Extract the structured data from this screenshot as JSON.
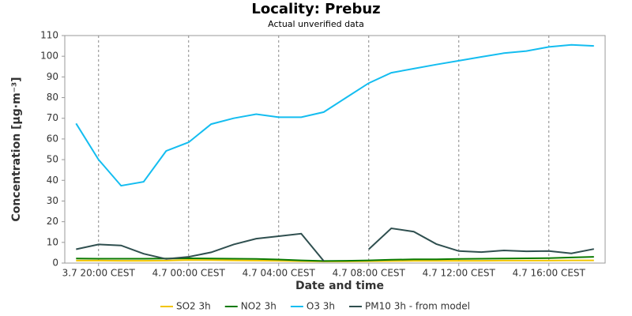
{
  "chart_data": {
    "type": "line",
    "title": "Locality: Prebuz",
    "subtitle": "Actual unverified data",
    "x_label": "Date and time",
    "y_label": "Concentration [μg·m⁻³]",
    "categories": [
      null,
      "3.7 20:00 CEST",
      null,
      null,
      null,
      "4.7 00:00 CEST",
      null,
      null,
      null,
      "4.7 04:00 CEST",
      null,
      null,
      null,
      "4.7 08:00 CEST",
      null,
      null,
      null,
      "4.7 12:00 CEST",
      null,
      null,
      null,
      "4.7 16:00 CEST",
      null,
      null
    ],
    "series": [
      {
        "name": "SO2 3h",
        "color": "#f2c500",
        "values": [
          1.2,
          1.2,
          1.1,
          1.1,
          1.2,
          1.5,
          1.4,
          1.3,
          1.2,
          1.1,
          0.9,
          0.8,
          0.8,
          0.9,
          1.0,
          1.1,
          1.1,
          1.1,
          1.1,
          1.2,
          1.2,
          1.2,
          1.3,
          1.3
        ]
      },
      {
        "name": "NO2 3h",
        "color": "#0a7a00",
        "values": [
          2.2,
          2.1,
          2.1,
          2.1,
          2.2,
          2.3,
          2.2,
          2.1,
          2.0,
          1.7,
          1.3,
          1.0,
          1.1,
          1.3,
          1.6,
          1.8,
          1.8,
          2.0,
          2.1,
          2.2,
          2.3,
          2.4,
          2.7,
          3.0
        ]
      },
      {
        "name": "O3 3h",
        "color": "#14bdf0",
        "values": [
          67.5,
          50,
          37.4,
          39.3,
          54.2,
          58.4,
          67.2,
          70,
          72,
          70.5,
          70.5,
          73,
          80,
          87,
          92,
          94,
          96,
          97.8,
          99.7,
          101.5,
          102.5,
          104.5,
          105.5,
          105
        ]
      },
      {
        "name": "PM10 3h - from model",
        "color": "#2f4f4f",
        "values": [
          6.7,
          9,
          8.5,
          4.5,
          2,
          3,
          5.2,
          9,
          11.8,
          13,
          14.2,
          1,
          null,
          6.7,
          16.8,
          15.2,
          9.2,
          5.8,
          5.3,
          6.1,
          5.7,
          5.8,
          4.7,
          6.8
        ]
      }
    ],
    "ylim": [
      0,
      110
    ],
    "yticks": [
      0,
      10,
      20,
      30,
      40,
      50,
      60,
      70,
      80,
      90,
      100,
      110
    ],
    "grid": "x"
  }
}
